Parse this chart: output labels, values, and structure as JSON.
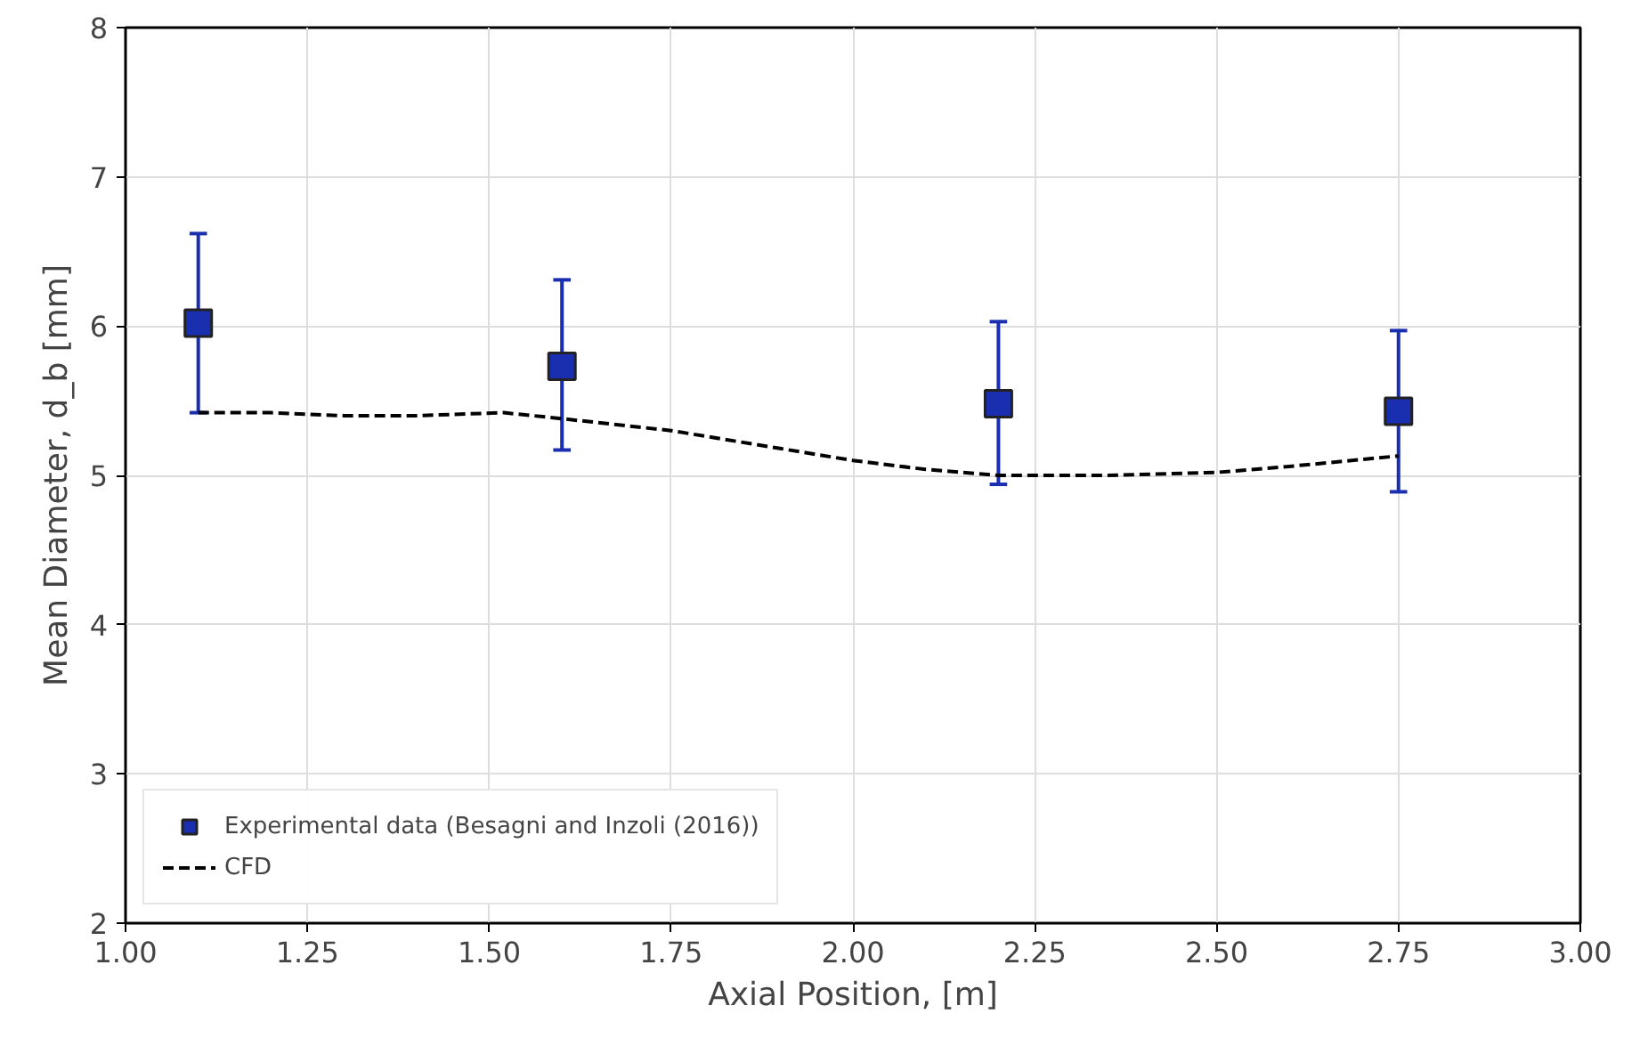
{
  "chart_data": {
    "type": "scatter",
    "xlabel": "Axial Position, [m]",
    "ylabel": "Mean Diameter, d_b [mm]",
    "xlim": [
      1.0,
      3.0
    ],
    "xticks": [
      {
        "value": 1.0,
        "label": "1.00"
      },
      {
        "value": 1.25,
        "label": "1.25"
      },
      {
        "value": 1.5,
        "label": "1.50"
      },
      {
        "value": 1.75,
        "label": "1.75"
      },
      {
        "value": 2.0,
        "label": "2.00"
      },
      {
        "value": 2.25,
        "label": "2.25"
      },
      {
        "value": 2.5,
        "label": "2.50"
      },
      {
        "value": 2.75,
        "label": "2.75"
      },
      {
        "value": 3.0,
        "label": "3.00"
      }
    ],
    "ylim": [
      2,
      8
    ],
    "yticks": [
      2,
      3,
      4,
      5,
      6,
      7,
      8
    ],
    "grid": true,
    "legend": "bottom left",
    "series": [
      {
        "name": "Experimental data (Besagni and Inzoli (2016))",
        "marker": "square",
        "color": "#1a2fb0",
        "x": [
          1.1,
          1.6,
          2.2,
          2.75
        ],
        "values": [
          6.02,
          5.73,
          5.48,
          5.43
        ],
        "errors": [
          [
            5.42,
            6.62
          ],
          [
            5.17,
            6.31
          ],
          [
            4.94,
            6.03
          ],
          [
            4.89,
            5.97
          ]
        ]
      },
      {
        "name": "CFD",
        "type": "line",
        "line_style": "dashed",
        "color": "#000000",
        "x": [
          1.1,
          1.2,
          1.3,
          1.4,
          1.52,
          1.6,
          1.75,
          1.9,
          2.0,
          2.1,
          2.2,
          2.35,
          2.5,
          2.6,
          2.75
        ],
        "values": [
          5.42,
          5.42,
          5.4,
          5.4,
          5.42,
          5.38,
          5.3,
          5.18,
          5.1,
          5.04,
          5.0,
          5.0,
          5.02,
          5.06,
          5.13
        ]
      }
    ]
  }
}
